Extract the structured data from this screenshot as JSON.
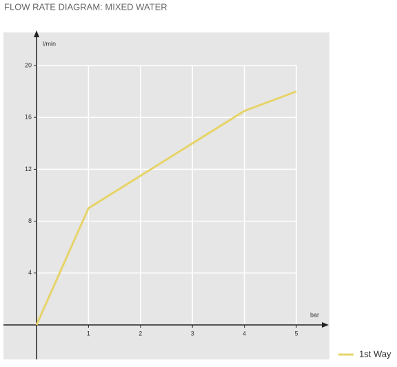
{
  "chart_data": {
    "type": "line",
    "title": "FLOW RATE DIAGRAM: MIXED WATER",
    "y_label": "l/min",
    "x_label": "bar",
    "x": [
      0,
      1,
      2,
      3,
      4,
      5
    ],
    "series": [
      {
        "name": "1st Way",
        "color": "#e6d46a",
        "values": [
          0,
          9,
          11.5,
          14,
          16.5,
          18
        ]
      }
    ],
    "xlim": [
      0,
      5
    ],
    "ylim": [
      0,
      20
    ],
    "xticks": [
      1,
      2,
      3,
      4,
      5
    ],
    "yticks": [
      4,
      8,
      12,
      16,
      20
    ],
    "grid": true,
    "legend": "bottom-right"
  }
}
